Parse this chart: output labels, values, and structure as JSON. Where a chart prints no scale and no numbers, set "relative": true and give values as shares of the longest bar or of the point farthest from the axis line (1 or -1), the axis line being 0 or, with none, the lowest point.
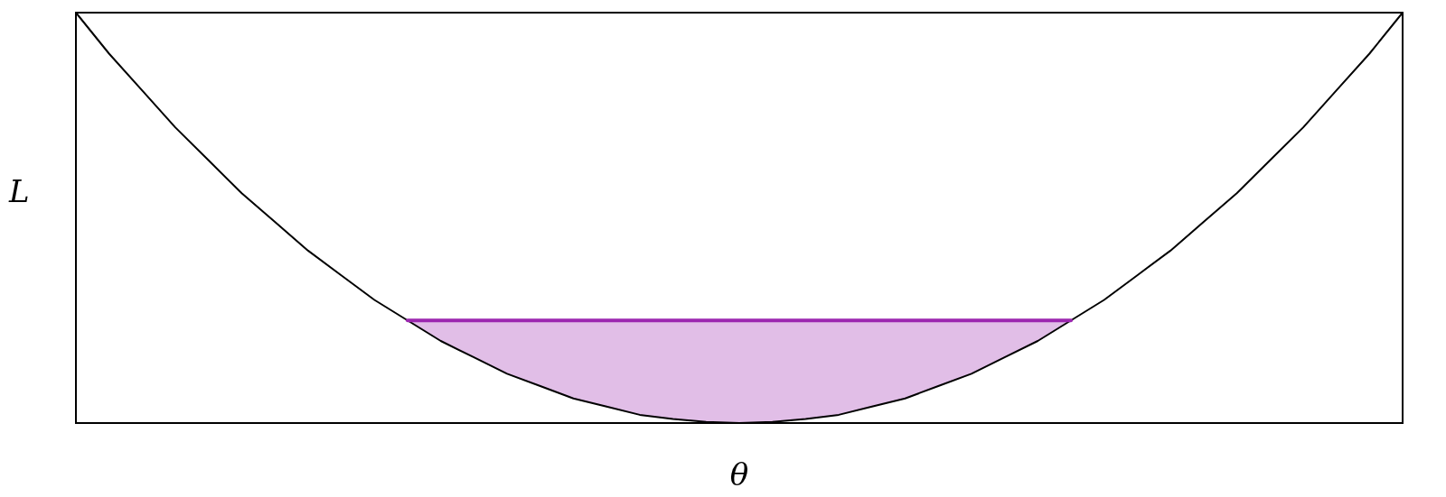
{
  "chart_data": {
    "type": "line",
    "relative": true,
    "xlabel": "θ",
    "ylabel": "L",
    "marker": "none",
    "line_style": "solid",
    "grid": false,
    "categories": [
      null,
      null,
      null,
      null,
      null,
      null,
      null,
      null,
      null,
      null,
      null,
      null,
      null,
      null,
      null,
      null,
      null,
      null,
      null,
      null,
      null,
      null,
      null,
      null,
      null,
      null,
      null,
      null,
      null,
      null,
      null,
      null,
      null,
      null,
      null,
      null,
      null,
      null,
      null,
      null,
      null
    ],
    "series": [
      {
        "type": "line",
        "color": "#000000",
        "values": [
          1,
          0.9,
          0.81,
          0.72,
          0.64,
          0.56,
          0.49,
          0.42,
          0.36,
          0.3,
          0.25,
          0.2,
          0.16,
          0.12,
          0.09,
          0.06,
          0.04,
          0.02,
          0.01,
          0.003,
          0,
          0.003,
          0.01,
          0.02,
          0.04,
          0.06,
          0.09,
          0.12,
          0.16,
          0.2,
          0.25,
          0.3,
          0.36,
          0.42,
          0.49,
          0.56,
          0.64,
          0.72,
          0.81,
          0.9,
          1
        ]
      },
      {
        "type": "line",
        "color": "#9c27b0",
        "values": [
          null,
          null,
          null,
          null,
          null,
          null,
          null,
          null,
          null,
          null,
          0.25,
          0.25,
          0.25,
          0.25,
          0.25,
          0.25,
          0.25,
          0.25,
          0.25,
          0.25,
          0.25,
          0.25,
          0.25,
          0.25,
          0.25,
          0.25,
          0.25,
          0.25,
          0.25,
          0.25,
          0.25,
          null,
          null,
          null,
          null,
          null,
          null,
          null,
          null,
          null,
          null
        ],
        "lower": [
          null,
          null,
          null,
          null,
          null,
          null,
          null,
          null,
          null,
          null,
          0.25,
          0.2,
          0.16,
          0.12,
          0.09,
          0.06,
          0.04,
          0.02,
          0.01,
          0.003,
          0,
          0.003,
          0.01,
          0.02,
          0.04,
          0.06,
          0.09,
          0.12,
          0.16,
          0.2,
          0.25,
          null,
          null,
          null,
          null,
          null,
          null,
          null,
          null,
          null,
          null
        ],
        "upper": [
          null,
          null,
          null,
          null,
          null,
          null,
          null,
          null,
          null,
          null,
          0.25,
          0.25,
          0.25,
          0.25,
          0.25,
          0.25,
          0.25,
          0.25,
          0.25,
          0.25,
          0.25,
          0.25,
          0.25,
          0.25,
          0.25,
          0.25,
          0.25,
          0.25,
          0.25,
          0.25,
          0.25,
          null,
          null,
          null,
          null,
          null,
          null,
          null,
          null,
          null,
          null
        ]
      }
    ]
  }
}
